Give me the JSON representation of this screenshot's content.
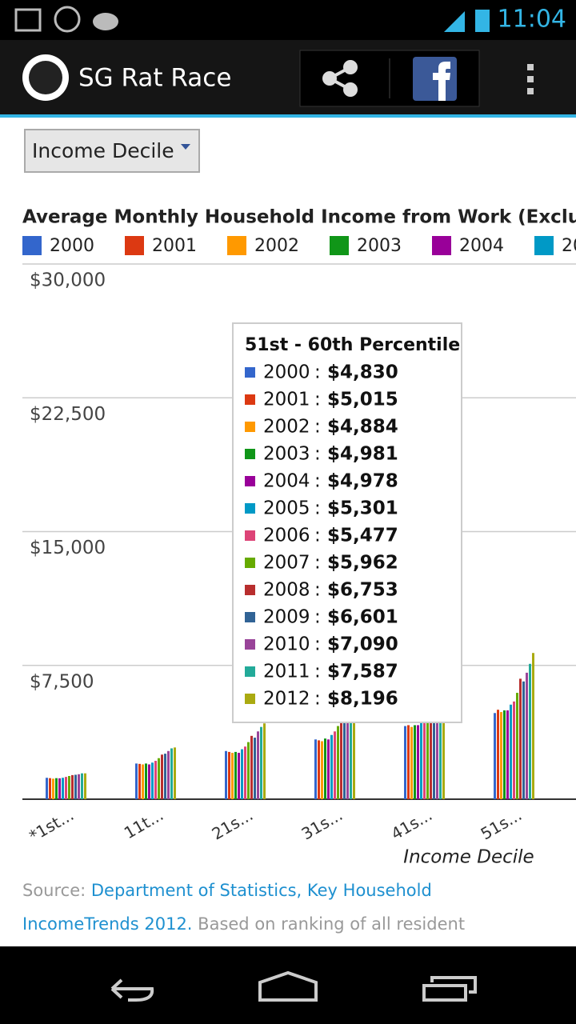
{
  "status_bar": {
    "time": "11:04"
  },
  "app_bar": {
    "title": "SG Rat Race"
  },
  "dropdown": {
    "label": "Income Decile"
  },
  "chart_data": {
    "type": "bar",
    "title": "Average Monthly Household Income from Work (Excluding I",
    "categories": [
      "*1st...",
      "11t...",
      "21s...",
      "31s...",
      "41s...",
      "51s..."
    ],
    "series": [
      {
        "name": "2000",
        "color": "#3366cc",
        "values": [
          1200,
          2000,
          2700,
          3350,
          4100,
          4830
        ],
        "value_labels": [
          null,
          null,
          null,
          null,
          null,
          "$4,830"
        ]
      },
      {
        "name": "2001",
        "color": "#dc3912",
        "values": [
          1180,
          1980,
          2650,
          3300,
          4150,
          5015
        ],
        "value_labels": [
          null,
          null,
          null,
          null,
          null,
          "$5,015"
        ]
      },
      {
        "name": "2002",
        "color": "#ff9900",
        "values": [
          1150,
          1950,
          2600,
          3250,
          4050,
          4884
        ],
        "value_labels": [
          null,
          null,
          null,
          null,
          null,
          "$4,884"
        ]
      },
      {
        "name": "2003",
        "color": "#109618",
        "values": [
          1180,
          2000,
          2650,
          3400,
          4150,
          4981
        ],
        "value_labels": [
          null,
          null,
          null,
          null,
          null,
          "$4,981"
        ]
      },
      {
        "name": "2004",
        "color": "#990099",
        "values": [
          1170,
          1950,
          2600,
          3350,
          4150,
          4978
        ],
        "value_labels": [
          null,
          null,
          null,
          null,
          null,
          "$4,978"
        ]
      },
      {
        "name": "2005",
        "color": "#0099c6",
        "values": [
          1200,
          2050,
          2800,
          3600,
          4400,
          5301
        ],
        "value_labels": [
          null,
          null,
          null,
          null,
          null,
          "$5,301"
        ]
      },
      {
        "name": "2006",
        "color": "#dd4477",
        "values": [
          1250,
          2150,
          2950,
          3800,
          4550,
          5477
        ],
        "value_labels": [
          null,
          null,
          null,
          null,
          null,
          "$5,477"
        ]
      },
      {
        "name": "2007",
        "color": "#66aa00",
        "values": [
          1300,
          2300,
          3200,
          4100,
          4950,
          5962
        ],
        "value_labels": [
          null,
          null,
          null,
          null,
          null,
          "$5,962"
        ]
      },
      {
        "name": "2008",
        "color": "#b82e2e",
        "values": [
          1350,
          2500,
          3550,
          4600,
          5600,
          6753
        ],
        "value_labels": [
          null,
          null,
          null,
          null,
          null,
          "$6,753"
        ]
      },
      {
        "name": "2009",
        "color": "#316395",
        "values": [
          1370,
          2550,
          3450,
          4500,
          5500,
          6601
        ],
        "value_labels": [
          null,
          null,
          null,
          null,
          null,
          "$6,601"
        ]
      },
      {
        "name": "2010",
        "color": "#994499",
        "values": [
          1400,
          2700,
          3800,
          4850,
          5900,
          7090
        ],
        "value_labels": [
          null,
          null,
          null,
          null,
          null,
          "$7,090"
        ]
      },
      {
        "name": "2011",
        "color": "#22aa99",
        "values": [
          1450,
          2850,
          4050,
          5150,
          6300,
          7587
        ],
        "value_labels": [
          null,
          null,
          null,
          null,
          null,
          "$7,587"
        ]
      },
      {
        "name": "2012",
        "color": "#aaaa11",
        "values": [
          1450,
          2900,
          4250,
          5550,
          6800,
          8196
        ],
        "value_labels": [
          null,
          null,
          null,
          null,
          null,
          "$8,196"
        ]
      }
    ],
    "ylim": [
      0,
      30000
    ],
    "yticks": [
      {
        "value": 0,
        "label": ""
      },
      {
        "value": 7500,
        "label": "$7,500"
      },
      {
        "value": 15000,
        "label": "$15,000"
      },
      {
        "value": 22500,
        "label": "$22,500"
      },
      {
        "value": 30000,
        "label": "$30,000"
      }
    ],
    "x_label": "Income Decile",
    "grid": true,
    "tooltip": {
      "title": "51st - 60th Percentile",
      "separator": ":"
    }
  },
  "source": {
    "label": "Source:",
    "link": "Department of Statistics, Key Household IncomeTrends 2012.",
    "note": "Based on ranking of all resident"
  }
}
